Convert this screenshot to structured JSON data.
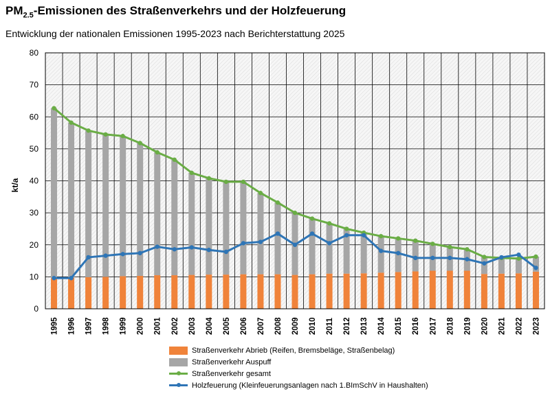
{
  "title_main": "PM",
  "title_sub": "2.5",
  "title_rest": "-Emissionen des Straßenverkehrs und der Holzfeuerung",
  "subtitle": "Entwicklung der nationalen Emissionen 1995-2023 nach Berichterstattung 2025",
  "colors": {
    "abrieb": "#f0833a",
    "auspuff": "#a6a6a6",
    "gesamt": "#6aad45",
    "holz": "#2e75b6",
    "plot_bg": "#f4f4f4"
  },
  "chart_data": {
    "type": "bar",
    "stacked": true,
    "title": "PM2.5-Emissionen des Straßenverkehrs und der Holzfeuerung",
    "subtitle": "Entwicklung der nationalen Emissionen 1995-2023 nach Berichterstattung 2025",
    "ylabel": "kt/a",
    "xlabel": "",
    "ylim": [
      0,
      80
    ],
    "yticks": [
      0,
      10,
      20,
      30,
      40,
      50,
      60,
      70,
      80
    ],
    "grid": true,
    "legend_position": "bottom",
    "categories": [
      "1995",
      "1996",
      "1997",
      "1998",
      "1999",
      "2000",
      "2001",
      "2002",
      "2003",
      "2004",
      "2005",
      "2006",
      "2007",
      "2008",
      "2009",
      "2010",
      "2011",
      "2012",
      "2013",
      "2014",
      "2015",
      "2016",
      "2017",
      "2018",
      "2019",
      "2020",
      "2021",
      "2022",
      "2023"
    ],
    "series": [
      {
        "name": "Straßenverkehr Abrieb (Reifen, Bremsbeläge, Straßenbelag)",
        "kind": "bar",
        "values": [
          9.6,
          9.7,
          9.9,
          10.0,
          10.2,
          10.3,
          10.5,
          10.5,
          10.6,
          10.7,
          10.7,
          10.8,
          10.8,
          10.8,
          10.6,
          10.8,
          11.0,
          11.0,
          11.1,
          11.3,
          11.5,
          11.7,
          11.9,
          11.9,
          11.9,
          10.9,
          11.0,
          11.1,
          11.6
        ]
      },
      {
        "name": "Straßenverkehr Auspuff",
        "kind": "bar",
        "values": [
          53.1,
          48.5,
          45.8,
          44.5,
          43.8,
          41.5,
          38.4,
          36.1,
          31.9,
          30.1,
          29.0,
          28.9,
          25.4,
          22.4,
          19.4,
          17.4,
          15.7,
          14.0,
          12.7,
          11.4,
          10.5,
          9.6,
          8.4,
          7.4,
          6.7,
          5.3,
          4.9,
          4.6,
          4.7
        ]
      },
      {
        "name": "Straßenverkehr gesamt",
        "kind": "line",
        "values": [
          62.7,
          58.2,
          55.7,
          54.5,
          54.0,
          51.8,
          48.9,
          46.6,
          42.5,
          40.8,
          39.7,
          39.7,
          36.2,
          33.2,
          30.0,
          28.2,
          26.7,
          25.0,
          23.8,
          22.7,
          22.0,
          21.3,
          20.3,
          19.3,
          18.6,
          16.2,
          15.9,
          15.7,
          16.3
        ]
      },
      {
        "name": "Holzfeuerung (Kleinfeuerungsanlagen nach 1.BImSchV in Haushalten)",
        "kind": "line",
        "values": [
          9.6,
          9.6,
          16.1,
          16.6,
          17.1,
          17.4,
          19.4,
          18.6,
          19.2,
          18.4,
          17.8,
          20.5,
          20.9,
          23.5,
          20.0,
          23.5,
          20.5,
          23.0,
          23.0,
          18.1,
          17.4,
          15.9,
          15.9,
          15.9,
          15.5,
          14.2,
          16.1,
          16.9,
          12.8
        ]
      }
    ]
  },
  "legend": [
    {
      "label": "Straßenverkehr Abrieb (Reifen, Bremsbeläge, Straßenbelag)"
    },
    {
      "label": "Straßenverkehr Auspuff"
    },
    {
      "label": "Straßenverkehr gesamt"
    },
    {
      "label": "Holzfeuerung (Kleinfeuerungsanlagen nach 1.BImSchV in Haushalten)"
    }
  ]
}
